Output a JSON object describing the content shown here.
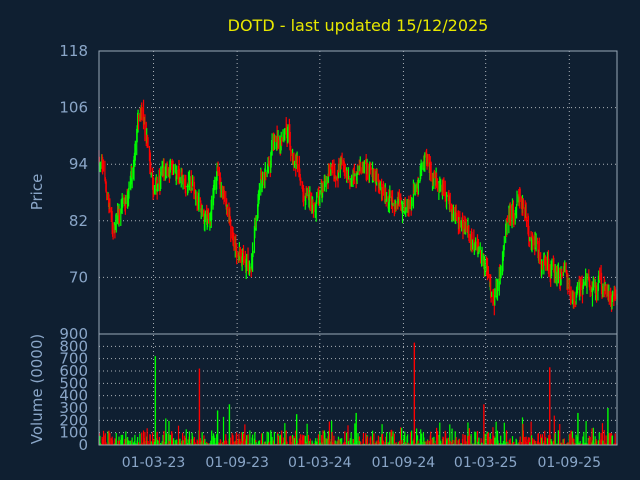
{
  "chart_data": [
    {
      "type": "candlestick",
      "title": "DOTD - last updated 15/12/2025",
      "ylabel": "Price",
      "ylim": [
        58,
        118
      ],
      "yticks": [
        "118",
        "106",
        "94",
        "82",
        "70"
      ],
      "y_tick_values": [
        118,
        106,
        94,
        82,
        70
      ],
      "grid": true,
      "up_color": "#00ff00",
      "down_color": "#ff0000",
      "background": "#0f1f31",
      "grid_color": "#ffffff",
      "x_start": "2022-11-01",
      "x_end": "2025-12-15",
      "trend": [
        [
          "2022-11-01",
          96
        ],
        [
          "2022-12-01",
          84
        ],
        [
          "2023-01-10",
          89
        ],
        [
          "2023-02-05",
          106
        ],
        [
          "2023-03-01",
          90
        ],
        [
          "2023-04-15",
          93
        ],
        [
          "2023-06-01",
          88
        ],
        [
          "2023-07-01",
          81
        ],
        [
          "2023-07-20",
          93
        ],
        [
          "2023-08-20",
          79
        ],
        [
          "2023-09-20",
          74
        ],
        [
          "2023-10-01",
          72
        ],
        [
          "2023-10-20",
          88
        ],
        [
          "2023-11-20",
          97
        ],
        [
          "2023-12-20",
          100
        ],
        [
          "2024-01-20",
          91
        ],
        [
          "2024-02-20",
          84
        ],
        [
          "2024-03-20",
          93
        ],
        [
          "2024-04-20",
          95
        ],
        [
          "2024-05-20",
          90
        ],
        [
          "2024-06-20",
          92
        ],
        [
          "2024-08-01",
          86
        ],
        [
          "2024-09-15",
          84
        ],
        [
          "2024-10-10",
          95
        ],
        [
          "2024-11-10",
          91
        ],
        [
          "2024-12-15",
          84
        ],
        [
          "2025-01-20",
          82
        ],
        [
          "2025-02-20",
          73
        ],
        [
          "2025-03-20",
          65
        ],
        [
          "2025-04-10",
          77
        ],
        [
          "2025-05-10",
          87
        ],
        [
          "2025-06-01",
          81
        ],
        [
          "2025-07-01",
          74
        ],
        [
          "2025-08-01",
          73
        ],
        [
          "2025-09-01",
          66
        ],
        [
          "2025-10-01",
          68
        ],
        [
          "2025-11-01",
          70
        ],
        [
          "2025-12-15",
          65
        ]
      ]
    },
    {
      "type": "bar",
      "ylabel": "Volume (0000)",
      "yticks": [
        "900",
        "800",
        "700",
        "600",
        "500",
        "400",
        "300",
        "200",
        "100",
        "0"
      ],
      "y_tick_values": [
        900,
        800,
        700,
        600,
        500,
        400,
        300,
        200,
        100,
        0
      ],
      "ylim": [
        0,
        900
      ],
      "xticks": [
        "01-03-23",
        "01-09-23",
        "01-03-24",
        "01-09-24",
        "01-03-25",
        "01-09-25"
      ],
      "xtick_dates": [
        "2023-03-01",
        "2023-09-01",
        "2024-03-01",
        "2024-09-01",
        "2025-03-01",
        "2025-09-01"
      ],
      "spikes": [
        [
          "2023-03-05",
          720,
          "up"
        ],
        [
          "2023-06-10",
          620,
          "down"
        ],
        [
          "2023-08-15",
          330,
          "up"
        ],
        [
          "2023-07-20",
          280,
          "up"
        ],
        [
          "2024-09-25",
          830,
          "down"
        ],
        [
          "2025-02-25",
          330,
          "down"
        ],
        [
          "2025-07-20",
          630,
          "down"
        ],
        [
          "2025-11-25",
          300,
          "up"
        ],
        [
          "2024-05-20",
          260,
          "up"
        ],
        [
          "2024-01-10",
          250,
          "up"
        ],
        [
          "2025-09-20",
          260,
          "up"
        ]
      ]
    }
  ]
}
